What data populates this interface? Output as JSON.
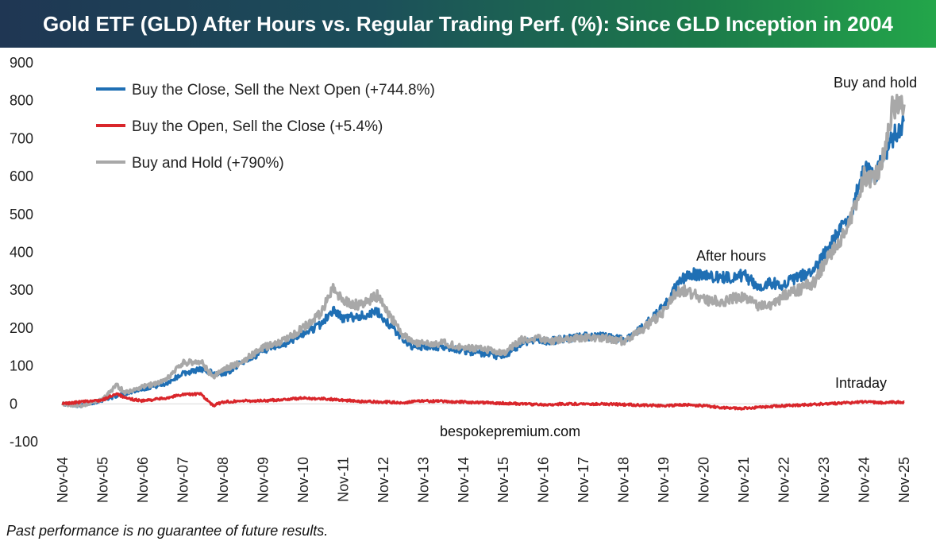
{
  "chart_data": {
    "type": "line",
    "title": "Gold ETF (GLD) After Hours vs. Regular Trading Perf. (%): Since GLD Inception in 2004",
    "ylim": [
      -100,
      900
    ],
    "yticks": [
      "900",
      "800",
      "700",
      "600",
      "500",
      "400",
      "300",
      "200",
      "100",
      "0",
      "-100"
    ],
    "categories": [
      "Nov-04",
      "Nov-05",
      "Nov-06",
      "Nov-07",
      "Nov-08",
      "Nov-09",
      "Nov-10",
      "Nov-11",
      "Nov-12",
      "Nov-13",
      "Nov-14",
      "Nov-15",
      "Nov-16",
      "Nov-17",
      "Nov-18",
      "Nov-19",
      "Nov-20",
      "Nov-21",
      "Nov-22",
      "Nov-23",
      "Nov-24",
      "Nov-25"
    ],
    "series": [
      {
        "name": "Buy the Close, Sell the Next Open (+744.8%)",
        "color": "#1f6fb4",
        "points": [
          [
            2004.85,
            0
          ],
          [
            2005.3,
            -5
          ],
          [
            2005.85,
            10
          ],
          [
            2006.4,
            28
          ],
          [
            2006.85,
            40
          ],
          [
            2007.4,
            52
          ],
          [
            2007.85,
            80
          ],
          [
            2008.3,
            92
          ],
          [
            2008.85,
            75
          ],
          [
            2009.3,
            108
          ],
          [
            2009.85,
            138
          ],
          [
            2010.4,
            158
          ],
          [
            2010.85,
            185
          ],
          [
            2011.3,
            210
          ],
          [
            2011.6,
            248
          ],
          [
            2011.85,
            225
          ],
          [
            2012.3,
            232
          ],
          [
            2012.7,
            242
          ],
          [
            2012.95,
            215
          ],
          [
            2013.3,
            175
          ],
          [
            2013.6,
            148
          ],
          [
            2013.9,
            150
          ],
          [
            2014.4,
            150
          ],
          [
            2014.85,
            140
          ],
          [
            2015.3,
            133
          ],
          [
            2015.85,
            122
          ],
          [
            2016.3,
            160
          ],
          [
            2016.6,
            170
          ],
          [
            2016.95,
            165
          ],
          [
            2017.4,
            172
          ],
          [
            2017.85,
            178
          ],
          [
            2018.3,
            178
          ],
          [
            2018.85,
            170
          ],
          [
            2019.3,
            200
          ],
          [
            2019.7,
            240
          ],
          [
            2019.9,
            262
          ],
          [
            2020.1,
            300
          ],
          [
            2020.3,
            330
          ],
          [
            2020.6,
            342
          ],
          [
            2020.85,
            340
          ],
          [
            2021.3,
            332
          ],
          [
            2021.85,
            340
          ],
          [
            2022.2,
            308
          ],
          [
            2022.5,
            320
          ],
          [
            2022.85,
            315
          ],
          [
            2023.2,
            335
          ],
          [
            2023.6,
            350
          ],
          [
            2023.85,
            395
          ],
          [
            2024.3,
            465
          ],
          [
            2024.55,
            510
          ],
          [
            2024.85,
            625
          ],
          [
            2025.1,
            600
          ],
          [
            2025.3,
            640
          ],
          [
            2025.55,
            700
          ],
          [
            2025.85,
            745
          ]
        ]
      },
      {
        "name": "Buy the Open, Sell the Close (+5.4%)",
        "color": "#d9262b",
        "points": [
          [
            2004.85,
            0
          ],
          [
            2005.3,
            5
          ],
          [
            2005.85,
            10
          ],
          [
            2006.2,
            28
          ],
          [
            2006.4,
            15
          ],
          [
            2006.85,
            8
          ],
          [
            2007.4,
            15
          ],
          [
            2007.85,
            25
          ],
          [
            2008.3,
            26
          ],
          [
            2008.6,
            -5
          ],
          [
            2008.85,
            5
          ],
          [
            2009.3,
            8
          ],
          [
            2009.85,
            8
          ],
          [
            2010.4,
            12
          ],
          [
            2010.85,
            15
          ],
          [
            2011.3,
            14
          ],
          [
            2011.85,
            10
          ],
          [
            2012.3,
            6
          ],
          [
            2012.85,
            5
          ],
          [
            2013.3,
            3
          ],
          [
            2013.85,
            8
          ],
          [
            2014.4,
            6
          ],
          [
            2014.85,
            5
          ],
          [
            2015.3,
            3
          ],
          [
            2015.85,
            2
          ],
          [
            2016.3,
            0
          ],
          [
            2016.85,
            -2
          ],
          [
            2017.4,
            0
          ],
          [
            2017.85,
            0
          ],
          [
            2018.3,
            0
          ],
          [
            2018.85,
            -2
          ],
          [
            2019.3,
            -3
          ],
          [
            2019.85,
            -5
          ],
          [
            2020.3,
            -2
          ],
          [
            2020.85,
            -5
          ],
          [
            2021.3,
            -10
          ],
          [
            2021.85,
            -12
          ],
          [
            2022.3,
            -8
          ],
          [
            2022.85,
            -5
          ],
          [
            2023.3,
            -3
          ],
          [
            2023.85,
            0
          ],
          [
            2024.3,
            2
          ],
          [
            2024.85,
            5
          ],
          [
            2025.3,
            3
          ],
          [
            2025.85,
            5
          ]
        ]
      },
      {
        "name": "Buy and Hold (+790%)",
        "color": "#a8a8a8",
        "points": [
          [
            2004.85,
            0
          ],
          [
            2005.3,
            -5
          ],
          [
            2005.85,
            12
          ],
          [
            2006.2,
            50
          ],
          [
            2006.4,
            30
          ],
          [
            2006.85,
            45
          ],
          [
            2007.4,
            60
          ],
          [
            2007.85,
            108
          ],
          [
            2008.3,
            112
          ],
          [
            2008.6,
            70
          ],
          [
            2008.85,
            90
          ],
          [
            2009.3,
            110
          ],
          [
            2009.85,
            148
          ],
          [
            2010.4,
            170
          ],
          [
            2010.85,
            200
          ],
          [
            2011.3,
            240
          ],
          [
            2011.6,
            305
          ],
          [
            2011.85,
            270
          ],
          [
            2012.3,
            260
          ],
          [
            2012.7,
            285
          ],
          [
            2012.95,
            245
          ],
          [
            2013.3,
            185
          ],
          [
            2013.6,
            160
          ],
          [
            2013.9,
            160
          ],
          [
            2014.4,
            160
          ],
          [
            2014.85,
            150
          ],
          [
            2015.3,
            145
          ],
          [
            2015.85,
            135
          ],
          [
            2016.3,
            170
          ],
          [
            2016.6,
            175
          ],
          [
            2016.95,
            165
          ],
          [
            2017.4,
            170
          ],
          [
            2017.85,
            175
          ],
          [
            2018.3,
            175
          ],
          [
            2018.85,
            165
          ],
          [
            2019.3,
            195
          ],
          [
            2019.7,
            230
          ],
          [
            2019.9,
            250
          ],
          [
            2020.1,
            285
          ],
          [
            2020.3,
            300
          ],
          [
            2020.6,
            290
          ],
          [
            2020.85,
            275
          ],
          [
            2021.3,
            270
          ],
          [
            2021.85,
            285
          ],
          [
            2022.2,
            260
          ],
          [
            2022.5,
            255
          ],
          [
            2022.85,
            285
          ],
          [
            2023.2,
            300
          ],
          [
            2023.6,
            320
          ],
          [
            2023.85,
            370
          ],
          [
            2024.3,
            440
          ],
          [
            2024.55,
            500
          ],
          [
            2024.85,
            600
          ],
          [
            2025.1,
            590
          ],
          [
            2025.3,
            640
          ],
          [
            2025.55,
            780
          ],
          [
            2025.85,
            790
          ]
        ]
      }
    ],
    "annotations": {
      "buy_and_hold": "Buy and hold",
      "after_hours": "After hours",
      "intraday": "Intraday"
    },
    "source": "bespokepremium.com"
  },
  "footnote": "Past performance is no guarantee of future results."
}
